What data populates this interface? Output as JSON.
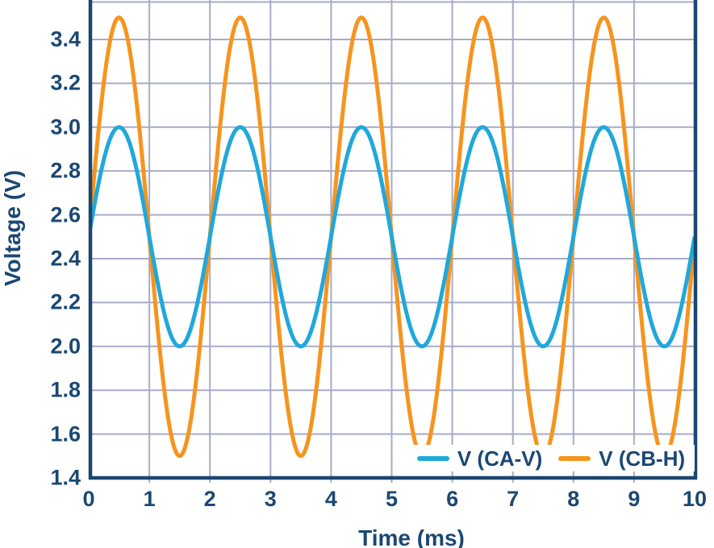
{
  "chart_data": {
    "type": "line",
    "title": "",
    "xlabel": "Time (ms)",
    "ylabel": "Voltage (V)",
    "x_ticks": [
      "0",
      "1",
      "2",
      "3",
      "4",
      "5",
      "6",
      "7",
      "8",
      "9",
      "10"
    ],
    "x_tick_values": [
      0,
      1,
      2,
      3,
      4,
      5,
      6,
      7,
      8,
      9,
      10
    ],
    "y_ticks": [
      "1.4",
      "1.6",
      "1.8",
      "2.0",
      "2.2",
      "2.4",
      "2.6",
      "2.8",
      "3.0",
      "3.2",
      "3.4"
    ],
    "y_tick_values": [
      1.4,
      1.6,
      1.8,
      2.0,
      2.2,
      2.4,
      2.6,
      2.8,
      3.0,
      3.2,
      3.4
    ],
    "xlim": [
      0,
      10
    ],
    "ylim_visible": [
      1.4,
      3.58
    ],
    "grid": true,
    "legend_position": "inside-bottom-right",
    "waveform": "sine",
    "series": [
      {
        "name": "V (CA-V)",
        "color": "#21A8DB",
        "offset_v": 2.5,
        "amplitude_v": 0.5,
        "period_ms": 2,
        "phase_deg": 0,
        "min_v": 2.0,
        "max_v": 3.0,
        "draw_order": 2
      },
      {
        "name": "V (CB-H)",
        "color": "#F7941E",
        "offset_v": 2.5,
        "amplitude_v": 1.0,
        "period_ms": 2,
        "phase_deg": 0,
        "min_v": 1.5,
        "max_v": 3.5,
        "draw_order": 1
      }
    ]
  },
  "colors": {
    "axis": "#1A476F",
    "label_text": "#1B4872",
    "gridline": "#A7ABC7",
    "background": "#FFFFFF"
  }
}
